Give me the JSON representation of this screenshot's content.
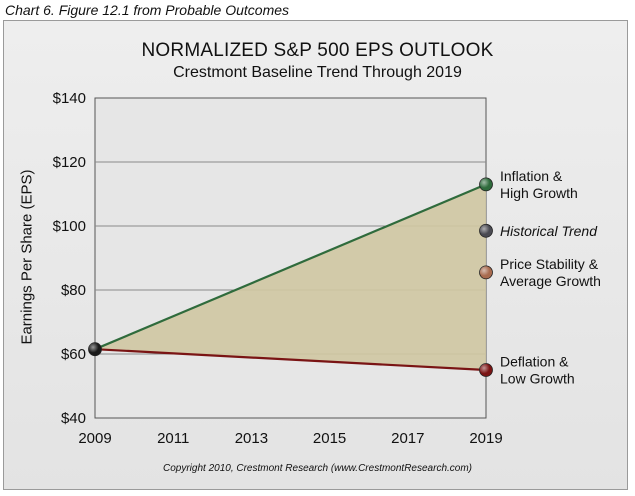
{
  "caption": "Chart 6. Figure 12.1 from Probable Outcomes",
  "copyright": "Copyright 2010, Crestmont Research (www.CrestmontResearch.com)",
  "colors": {
    "upper_line": "#2f6b3c",
    "lower_line": "#7a1414",
    "fill": "#cfc7a2",
    "plot_bg": "#e6e6e6",
    "grid": "#8a8a8a"
  },
  "chart_data": {
    "type": "line",
    "title": "NORMALIZED S&P 500 EPS OUTLOOK",
    "subtitle": "Crestmont Baseline Trend Through 2019",
    "xlabel": "",
    "ylabel": "Earnings Per Share (EPS)",
    "x_ticks": [
      "2009",
      "2011",
      "2013",
      "2015",
      "2017",
      "2019"
    ],
    "y_ticks": [
      "$40",
      "$60",
      "$80",
      "$100",
      "$120",
      "$140"
    ],
    "xlim": [
      2009,
      2019
    ],
    "ylim": [
      40,
      140
    ],
    "grid": true,
    "series": [
      {
        "name": "",
        "x": [
          2009,
          2019
        ],
        "y": [
          61.5,
          113
        ],
        "color": "#2f6b3c"
      },
      {
        "name": "",
        "x": [
          2009,
          2019
        ],
        "y": [
          61.5,
          55
        ],
        "color": "#7a1414"
      }
    ],
    "start_point": {
      "x": 2009,
      "y": 61.5,
      "color": "#1a1a1a"
    },
    "endpoints": [
      {
        "label": [
          "Inflation &",
          "High Growth"
        ],
        "y": 113,
        "color": "#2f6b3c",
        "italic": false
      },
      {
        "label": [
          "Historical Trend"
        ],
        "y": 98.5,
        "color": "#4a4a52",
        "italic": true
      },
      {
        "label": [
          "Price Stability &",
          "Average Growth"
        ],
        "y": 85.5,
        "color": "#a86a4e",
        "italic": false
      },
      {
        "label": [
          "Deflation &",
          "Low Growth"
        ],
        "y": 55,
        "color": "#7a1414",
        "italic": false
      }
    ]
  }
}
